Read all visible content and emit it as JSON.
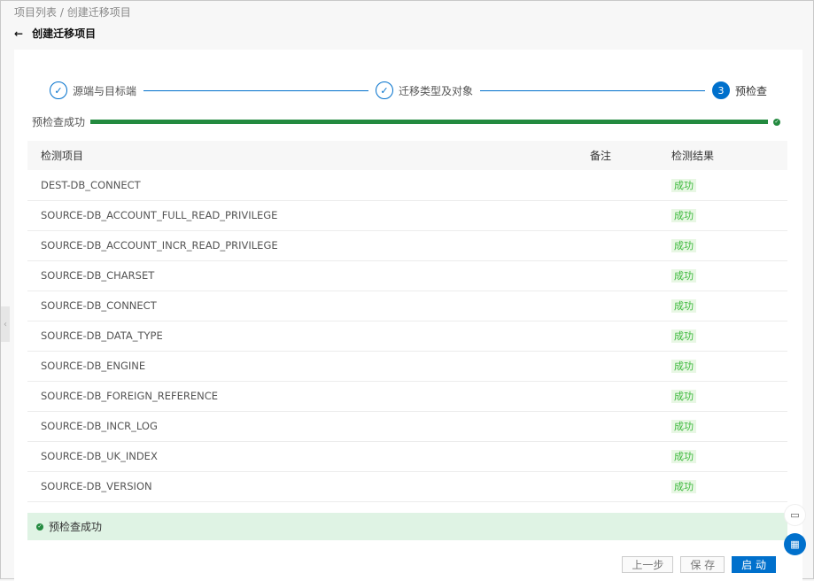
{
  "breadcrumb": {
    "items": [
      "项目列表",
      "创建迁移项目"
    ],
    "sep": "/"
  },
  "page": {
    "title": "创建迁移项目"
  },
  "steps": [
    {
      "label": "源端与目标端",
      "status": "done"
    },
    {
      "label": "迁移类型及对象",
      "status": "done"
    },
    {
      "label": "预检查",
      "status": "active",
      "num": "3"
    }
  ],
  "progress": {
    "label": "预检查成功",
    "percent": 100
  },
  "table": {
    "headers": [
      "检测项目",
      "备注",
      "检测结果"
    ],
    "rows": [
      [
        "DEST-DB_CONNECT",
        "",
        "成功"
      ],
      [
        "SOURCE-DB_ACCOUNT_FULL_READ_PRIVILEGE",
        "",
        "成功"
      ],
      [
        "SOURCE-DB_ACCOUNT_INCR_READ_PRIVILEGE",
        "",
        "成功"
      ],
      [
        "SOURCE-DB_CHARSET",
        "",
        "成功"
      ],
      [
        "SOURCE-DB_CONNECT",
        "",
        "成功"
      ],
      [
        "SOURCE-DB_DATA_TYPE",
        "",
        "成功"
      ],
      [
        "SOURCE-DB_ENGINE",
        "",
        "成功"
      ],
      [
        "SOURCE-DB_FOREIGN_REFERENCE",
        "",
        "成功"
      ],
      [
        "SOURCE-DB_INCR_LOG",
        "",
        "成功"
      ],
      [
        "SOURCE-DB_UK_INDEX",
        "",
        "成功"
      ],
      [
        "SOURCE-DB_VERSION",
        "",
        "成功"
      ]
    ]
  },
  "banner": {
    "text": "预检查成功"
  },
  "buttons": {
    "prev": "上一步",
    "save": "保 存",
    "start": "启 动"
  },
  "colors": {
    "primary": "#0070cc",
    "success": "#238a3f",
    "success_text": "#3cb93c"
  }
}
